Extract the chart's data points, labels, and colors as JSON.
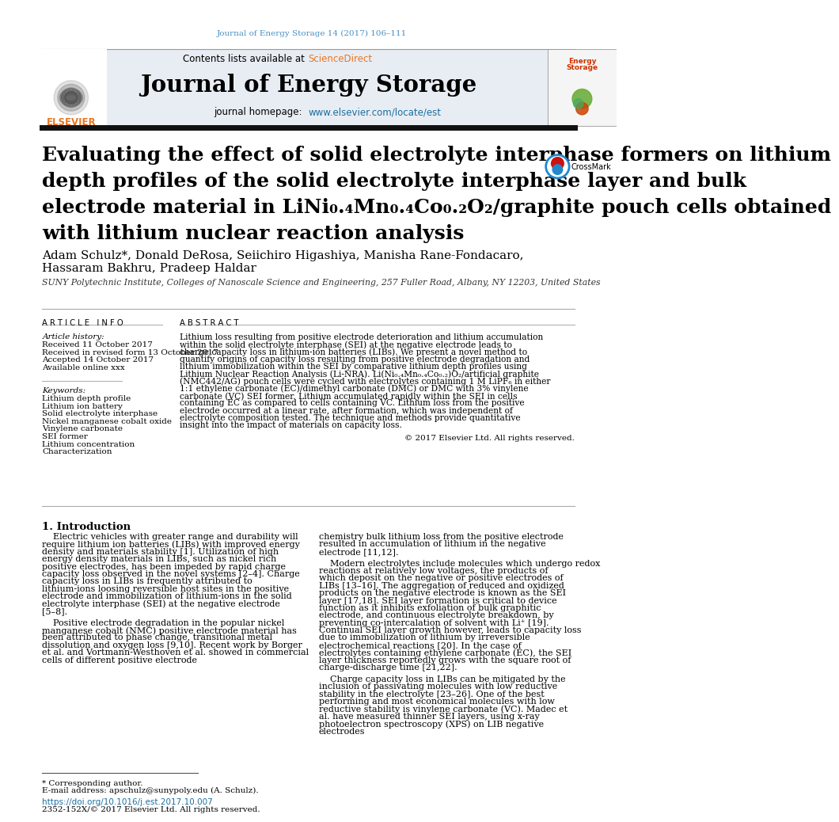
{
  "page_title": "Journal of Energy Storage 14 (2017) 106–111",
  "journal_name": "Journal of Energy Storage",
  "homepage_url": "www.elsevier.com/locate/est",
  "article_title_line1": "Evaluating the effect of solid electrolyte interphase formers on lithium",
  "article_title_line2": "depth profiles of the solid electrolyte interphase layer and bulk",
  "article_title_line3": "electrode material in LiNi₀.₄Mn₀.₄Co₀.₂O₂/graphite pouch cells obtained",
  "article_title_line4": "with lithium nuclear reaction analysis",
  "authors_line1": "Adam Schulz*, Donald DeRosa, Seiichiro Higashiya, Manisha Rane-Fondacaro,",
  "authors_line2": "Hassaram Bakhru, Pradeep Haldar",
  "affiliation": "SUNY Polytechnic Institute, Colleges of Nanoscale Science and Engineering, 257 Fuller Road, Albany, NY 12203, United States",
  "article_info_header": "ARTICLE INFO",
  "abstract_header": "ABSTRACT",
  "article_history_label": "Article history:",
  "received": "Received 11 October 2017",
  "revised": "Received in revised form 13 October 2017",
  "accepted": "Accepted 14 October 2017",
  "available": "Available online xxx",
  "keywords_label": "Keywords:",
  "keywords": [
    "Lithium depth profile",
    "Lithium ion battery",
    "Solid electrolyte interphase",
    "Nickel manganese cobalt oxide",
    "Vinylene carbonate",
    "SEI former",
    "Lithium concentration",
    "Characterization"
  ],
  "abstract_text": "Lithium loss resulting from positive electrode deterioration and lithium accumulation within the solid electrolyte interphase (SEI) at the negative electrode leads to charge capacity loss in lithium-ion batteries (LIBs). We present a novel method to quantify origins of capacity loss resulting from positive electrode degradation and lithium immobilization within the SEI by comparative lithium depth profiles using Lithium Nuclear Reaction Analysis (Li-NRA). Li(Ni₀.₄Mn₀.₄Co₀.₂)O₂/artificial graphite (NMC442/AG) pouch cells were cycled with electrolytes containing 1 M LiPF₆ in either 1:1 ethylene carbonate (EC)/dimethyl carbonate (DMC) or DMC with 3% vinylene carbonate (VC) SEI former. Lithium accumulated rapidly within the SEI in cells containing EC as compared to cells containing VC. Lithium loss from the positive electrode occurred at a linear rate, after formation, which was independent of electrolyte composition tested. The technique and methods provide quantitative insight into the impact of materials on capacity loss.",
  "copyright": "© 2017 Elsevier Ltd. All rights reserved.",
  "intro_header": "1. Introduction",
  "intro_col1_p1": "Electric vehicles with greater range and durability will require lithium ion batteries (LIBs) with improved energy density and materials stability [1]. Utilization of high energy density materials in LIBs, such as nickel rich positive electrodes, has been impeded by rapid charge capacity loss observed in the novel systems [2–4]. Charge capacity loss in LIBs is frequently attributed to lithium-ions loosing reversible host sites in the positive electrode and immobilization of lithium-ions in the solid electrolyte interphase (SEI) at the negative electrode [5–8].",
  "intro_col1_p2": "Positive electrode degradation in the popular nickel manganese cobalt (NMC) positive electrode material has been attributed to phase change, transitional metal dissolution and oxygen loss [9,10]. Recent work by Borger et al. and Vortmann-Westhoven et al. showed in commercial cells of different positive electrode",
  "intro_col2_p1": "chemistry bulk lithium loss from the positive electrode resulted in accumulation of lithium in the negative electrode [11,12].",
  "intro_col2_p2": "Modern electrolytes include molecules which undergo redox reactions at relatively low voltages, the products of which deposit on the negative or positive electrodes of LIBs [13–16]. The aggregation of reduced and oxidized products on the negative electrode is known as the SEI layer [17,18]. SEI layer formation is critical to device function as it inhibits exfoliation of bulk graphitic electrode, and continuous electrolyte breakdown, by preventing co-intercalation of solvent with Li⁺ [19]. Continual SEI layer growth however, leads to capacity loss due to immobilization of lithium by irreversible electrochemical reactions [20]. In the case of electrolytes containing ethylene carbonate (EC), the SEI layer thickness reportedly grows with the square root of charge-discharge time [21,22].",
  "intro_col2_p3": "Charge capacity loss in LIBs can be mitigated by the inclusion of passivating molecules with low reductive stability in the electrolyte [23–26]. One of the best performing and most economical molecules with low reductive stability is vinylene carbonate (VC). Madec et al. have measured thinner SEI layers, using x-ray photoelectron spectroscopy (XPS) on LIB negative electrodes",
  "footnote_star": "* Corresponding author.",
  "footnote_email": "E-mail address: apschulz@sunypoly.edu (A. Schulz).",
  "doi": "https://doi.org/10.1016/j.est.2017.10.007",
  "issn": "2352-152X/© 2017 Elsevier Ltd. All rights reserved.",
  "header_bg_color": "#e8edf3",
  "title_color": "#4a90c4",
  "sciencedirect_color": "#e87722",
  "url_color": "#1a6fa0",
  "black": "#000000",
  "dark_gray": "#333333",
  "elsevier_orange": "#e87722",
  "section_line_color": "#aaaaaa"
}
